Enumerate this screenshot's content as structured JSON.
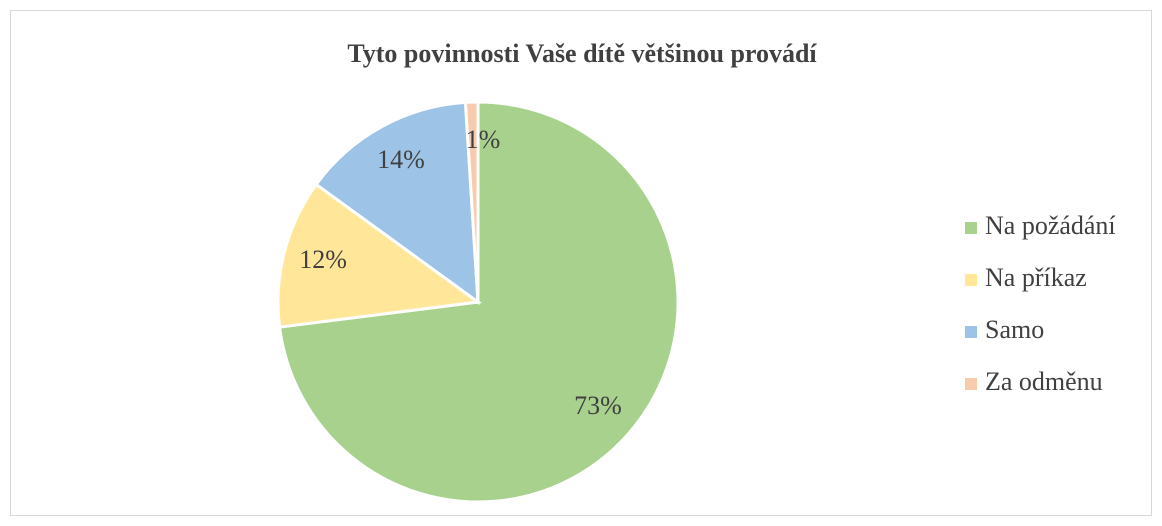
{
  "chart_data": {
    "type": "pie",
    "title": "Tyto povinnosti Vaše dítě většinou provádí",
    "categories": [
      "Na požádání",
      "Na příkaz",
      "Samo",
      "Za odměnu"
    ],
    "values": [
      73,
      12,
      14,
      1
    ],
    "value_labels": [
      "73%",
      "12%",
      "14%",
      "1%"
    ],
    "colors": [
      "#a9d18e",
      "#ffe699",
      "#9dc3e6",
      "#f8cbad"
    ],
    "legend": "right"
  }
}
